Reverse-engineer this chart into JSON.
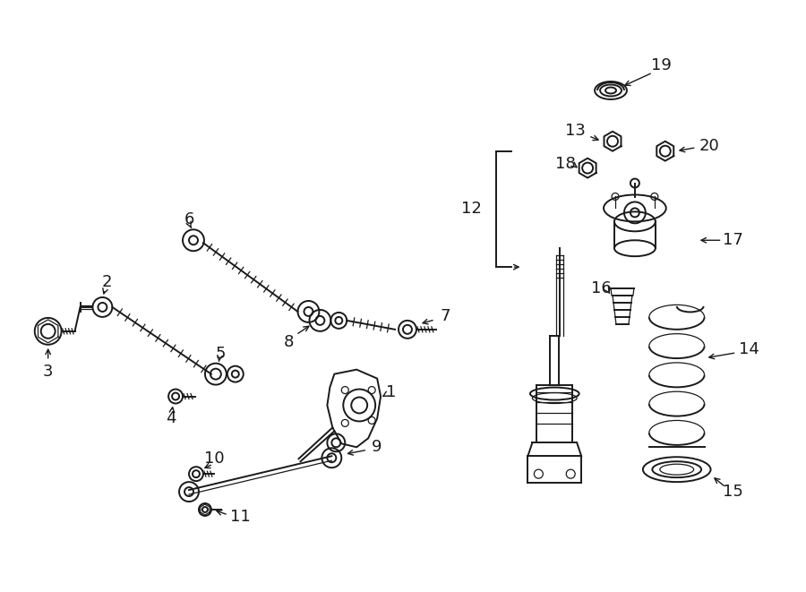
{
  "bg_color": "#ffffff",
  "line_color": "#1a1a1a",
  "fig_width": 9.0,
  "fig_height": 6.61,
  "dpi": 100,
  "lw_main": 1.4,
  "lw_thin": 0.9,
  "fs_label": 13
}
